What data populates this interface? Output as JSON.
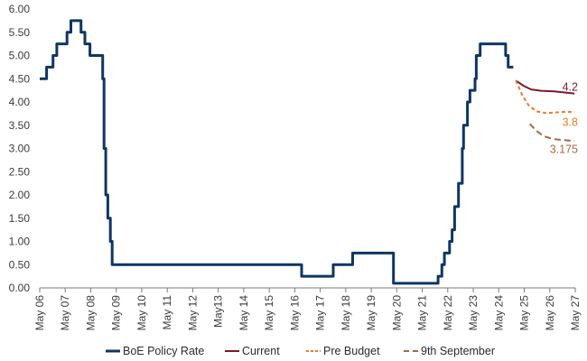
{
  "chart_data": {
    "type": "line",
    "title": "",
    "xlabel": "",
    "ylabel": "",
    "x_ticks": [
      "May 06",
      "May 07",
      "May 08",
      "May 09",
      "May 10",
      "May 11",
      "May 12",
      "May13",
      "May 14",
      "May 15",
      "May 16",
      "May 17",
      "May 18",
      "May 19",
      "May 20",
      "May 21",
      "May 22",
      "May 23",
      "May 24",
      "May 25",
      "May 26",
      "May 27"
    ],
    "y_ticks": [
      "0.00",
      "0.50",
      "1.00",
      "1.50",
      "2.00",
      "2.50",
      "3.00",
      "3.50",
      "4.00",
      "4.50",
      "5.00",
      "5.50",
      "6.00"
    ],
    "xlim": [
      2006.33,
      2027.33
    ],
    "ylim": [
      0,
      6
    ],
    "grid": false,
    "legend_position": "bottom",
    "series": [
      {
        "name": "BoE Policy Rate",
        "color": "#0f3663",
        "style": "solid",
        "step": true,
        "points": [
          [
            2006.33,
            4.5
          ],
          [
            2006.6,
            4.75
          ],
          [
            2006.85,
            5.0
          ],
          [
            2007.0,
            5.25
          ],
          [
            2007.4,
            5.5
          ],
          [
            2007.55,
            5.75
          ],
          [
            2007.95,
            5.5
          ],
          [
            2008.1,
            5.25
          ],
          [
            2008.3,
            5.0
          ],
          [
            2008.8,
            4.5
          ],
          [
            2008.85,
            3.0
          ],
          [
            2008.92,
            2.0
          ],
          [
            2009.0,
            1.5
          ],
          [
            2009.1,
            1.0
          ],
          [
            2009.17,
            0.5
          ],
          [
            2016.6,
            0.25
          ],
          [
            2017.84,
            0.5
          ],
          [
            2018.6,
            0.75
          ],
          [
            2020.2,
            0.1
          ],
          [
            2021.95,
            0.25
          ],
          [
            2022.1,
            0.5
          ],
          [
            2022.2,
            0.75
          ],
          [
            2022.4,
            1.0
          ],
          [
            2022.5,
            1.25
          ],
          [
            2022.6,
            1.75
          ],
          [
            2022.75,
            2.25
          ],
          [
            2022.9,
            3.0
          ],
          [
            2022.95,
            3.5
          ],
          [
            2023.1,
            4.0
          ],
          [
            2023.2,
            4.25
          ],
          [
            2023.4,
            4.5
          ],
          [
            2023.45,
            5.0
          ],
          [
            2023.6,
            5.25
          ],
          [
            2024.6,
            5.0
          ],
          [
            2024.7,
            4.75
          ],
          [
            2024.9,
            4.75
          ]
        ]
      },
      {
        "name": "Current",
        "color": "#7a1a2c",
        "style": "solid",
        "step": false,
        "points": [
          [
            2025.0,
            4.46
          ],
          [
            2025.3,
            4.35
          ],
          [
            2025.6,
            4.27
          ],
          [
            2026.0,
            4.24
          ],
          [
            2026.5,
            4.23
          ],
          [
            2027.0,
            4.2
          ],
          [
            2027.3,
            4.18
          ]
        ]
      },
      {
        "name": "Pre Budget",
        "color": "#ec7b2b",
        "style": "dashed",
        "step": false,
        "points": [
          [
            2025.0,
            4.46
          ],
          [
            2025.25,
            4.15
          ],
          [
            2025.5,
            3.93
          ],
          [
            2025.8,
            3.8
          ],
          [
            2026.2,
            3.76
          ],
          [
            2026.7,
            3.78
          ],
          [
            2027.0,
            3.79
          ],
          [
            2027.3,
            3.78
          ]
        ]
      },
      {
        "name": "9th September",
        "color": "#a56a45",
        "style": "dashed",
        "step": false,
        "points": [
          [
            2025.55,
            3.53
          ],
          [
            2025.8,
            3.38
          ],
          [
            2026.1,
            3.26
          ],
          [
            2026.5,
            3.2
          ],
          [
            2026.9,
            3.18
          ],
          [
            2027.3,
            3.16
          ]
        ]
      }
    ],
    "annotations": [
      {
        "text": "4.2",
        "x": 2026.95,
        "y": 4.2,
        "color": "#7a1a2c"
      },
      {
        "text": "3.8",
        "x": 2026.95,
        "y": 3.8,
        "color": "#ec7b2b"
      },
      {
        "text": "3.175",
        "x": 2026.95,
        "y": 3.175,
        "color": "#a56a45"
      }
    ]
  }
}
